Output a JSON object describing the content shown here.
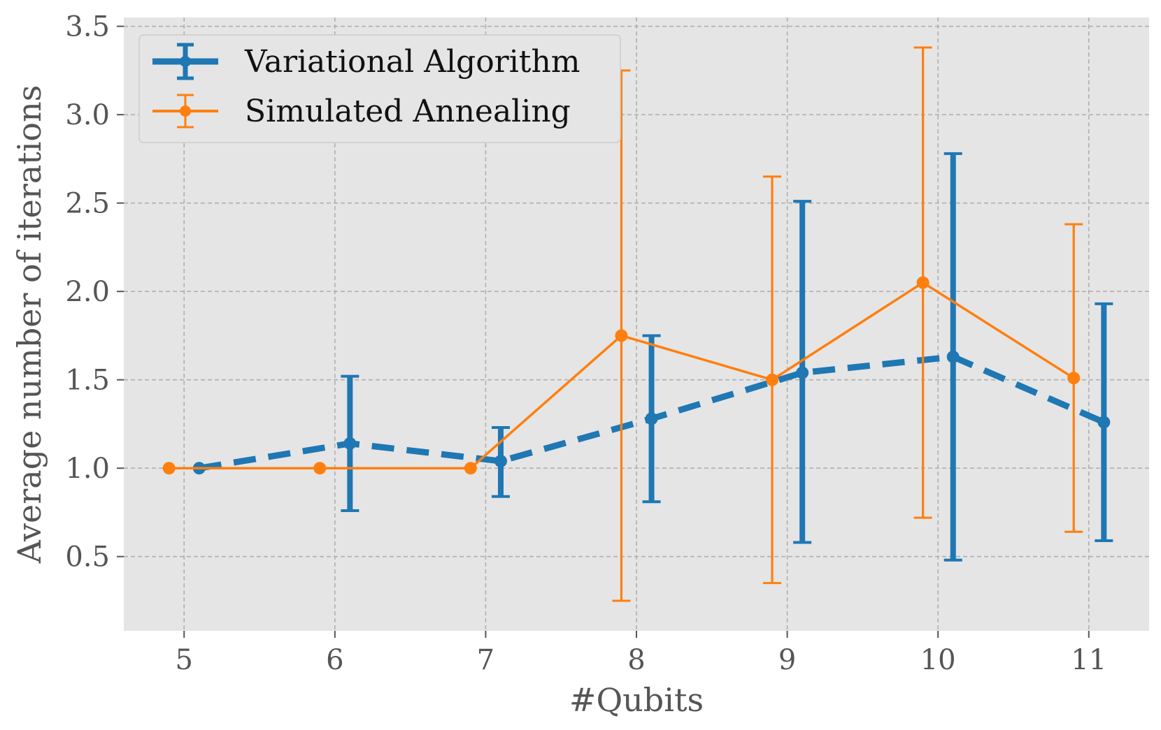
{
  "chart_data": {
    "type": "line",
    "title": "",
    "xlabel": "#Qubits",
    "ylabel": "Average number of iterations",
    "xlim": [
      4.6,
      11.4
    ],
    "ylim": [
      0.08,
      3.55
    ],
    "x_ticks": [
      5,
      6,
      7,
      8,
      9,
      10,
      11
    ],
    "x_tick_labels": [
      "5",
      "6",
      "7",
      "8",
      "9",
      "10",
      "11"
    ],
    "y_ticks": [
      0.5,
      1.0,
      1.5,
      2.0,
      2.5,
      3.0,
      3.5
    ],
    "y_tick_labels": [
      "0.5",
      "1.0",
      "1.5",
      "2.0",
      "2.5",
      "3.0",
      "3.5"
    ],
    "grid": true,
    "legend_position": "top-left",
    "series": [
      {
        "name": "Variational Algorithm",
        "color": "#1f77b4",
        "line_style": "dashed",
        "marker": "circle",
        "x": [
          5.1,
          6.1,
          7.1,
          8.1,
          9.1,
          10.1,
          11.1
        ],
        "y": [
          1.0,
          1.14,
          1.04,
          1.28,
          1.54,
          1.63,
          1.26
        ],
        "y_err_low": [
          1.0,
          0.76,
          0.84,
          0.81,
          0.58,
          0.48,
          0.59
        ],
        "y_err_high": [
          1.0,
          1.52,
          1.23,
          1.75,
          2.51,
          2.78,
          1.93
        ]
      },
      {
        "name": "Simulated Annealing",
        "color": "#ff7f0e",
        "line_style": "solid",
        "marker": "circle",
        "x": [
          4.9,
          5.9,
          6.9,
          7.9,
          8.9,
          9.9,
          10.9
        ],
        "y": [
          1.0,
          1.0,
          1.0,
          1.75,
          1.5,
          2.05,
          1.51
        ],
        "y_err_low": [
          1.0,
          1.0,
          1.0,
          0.25,
          0.35,
          0.72,
          0.64
        ],
        "y_err_high": [
          1.0,
          1.0,
          1.0,
          3.25,
          2.65,
          3.38,
          2.38
        ]
      }
    ]
  }
}
